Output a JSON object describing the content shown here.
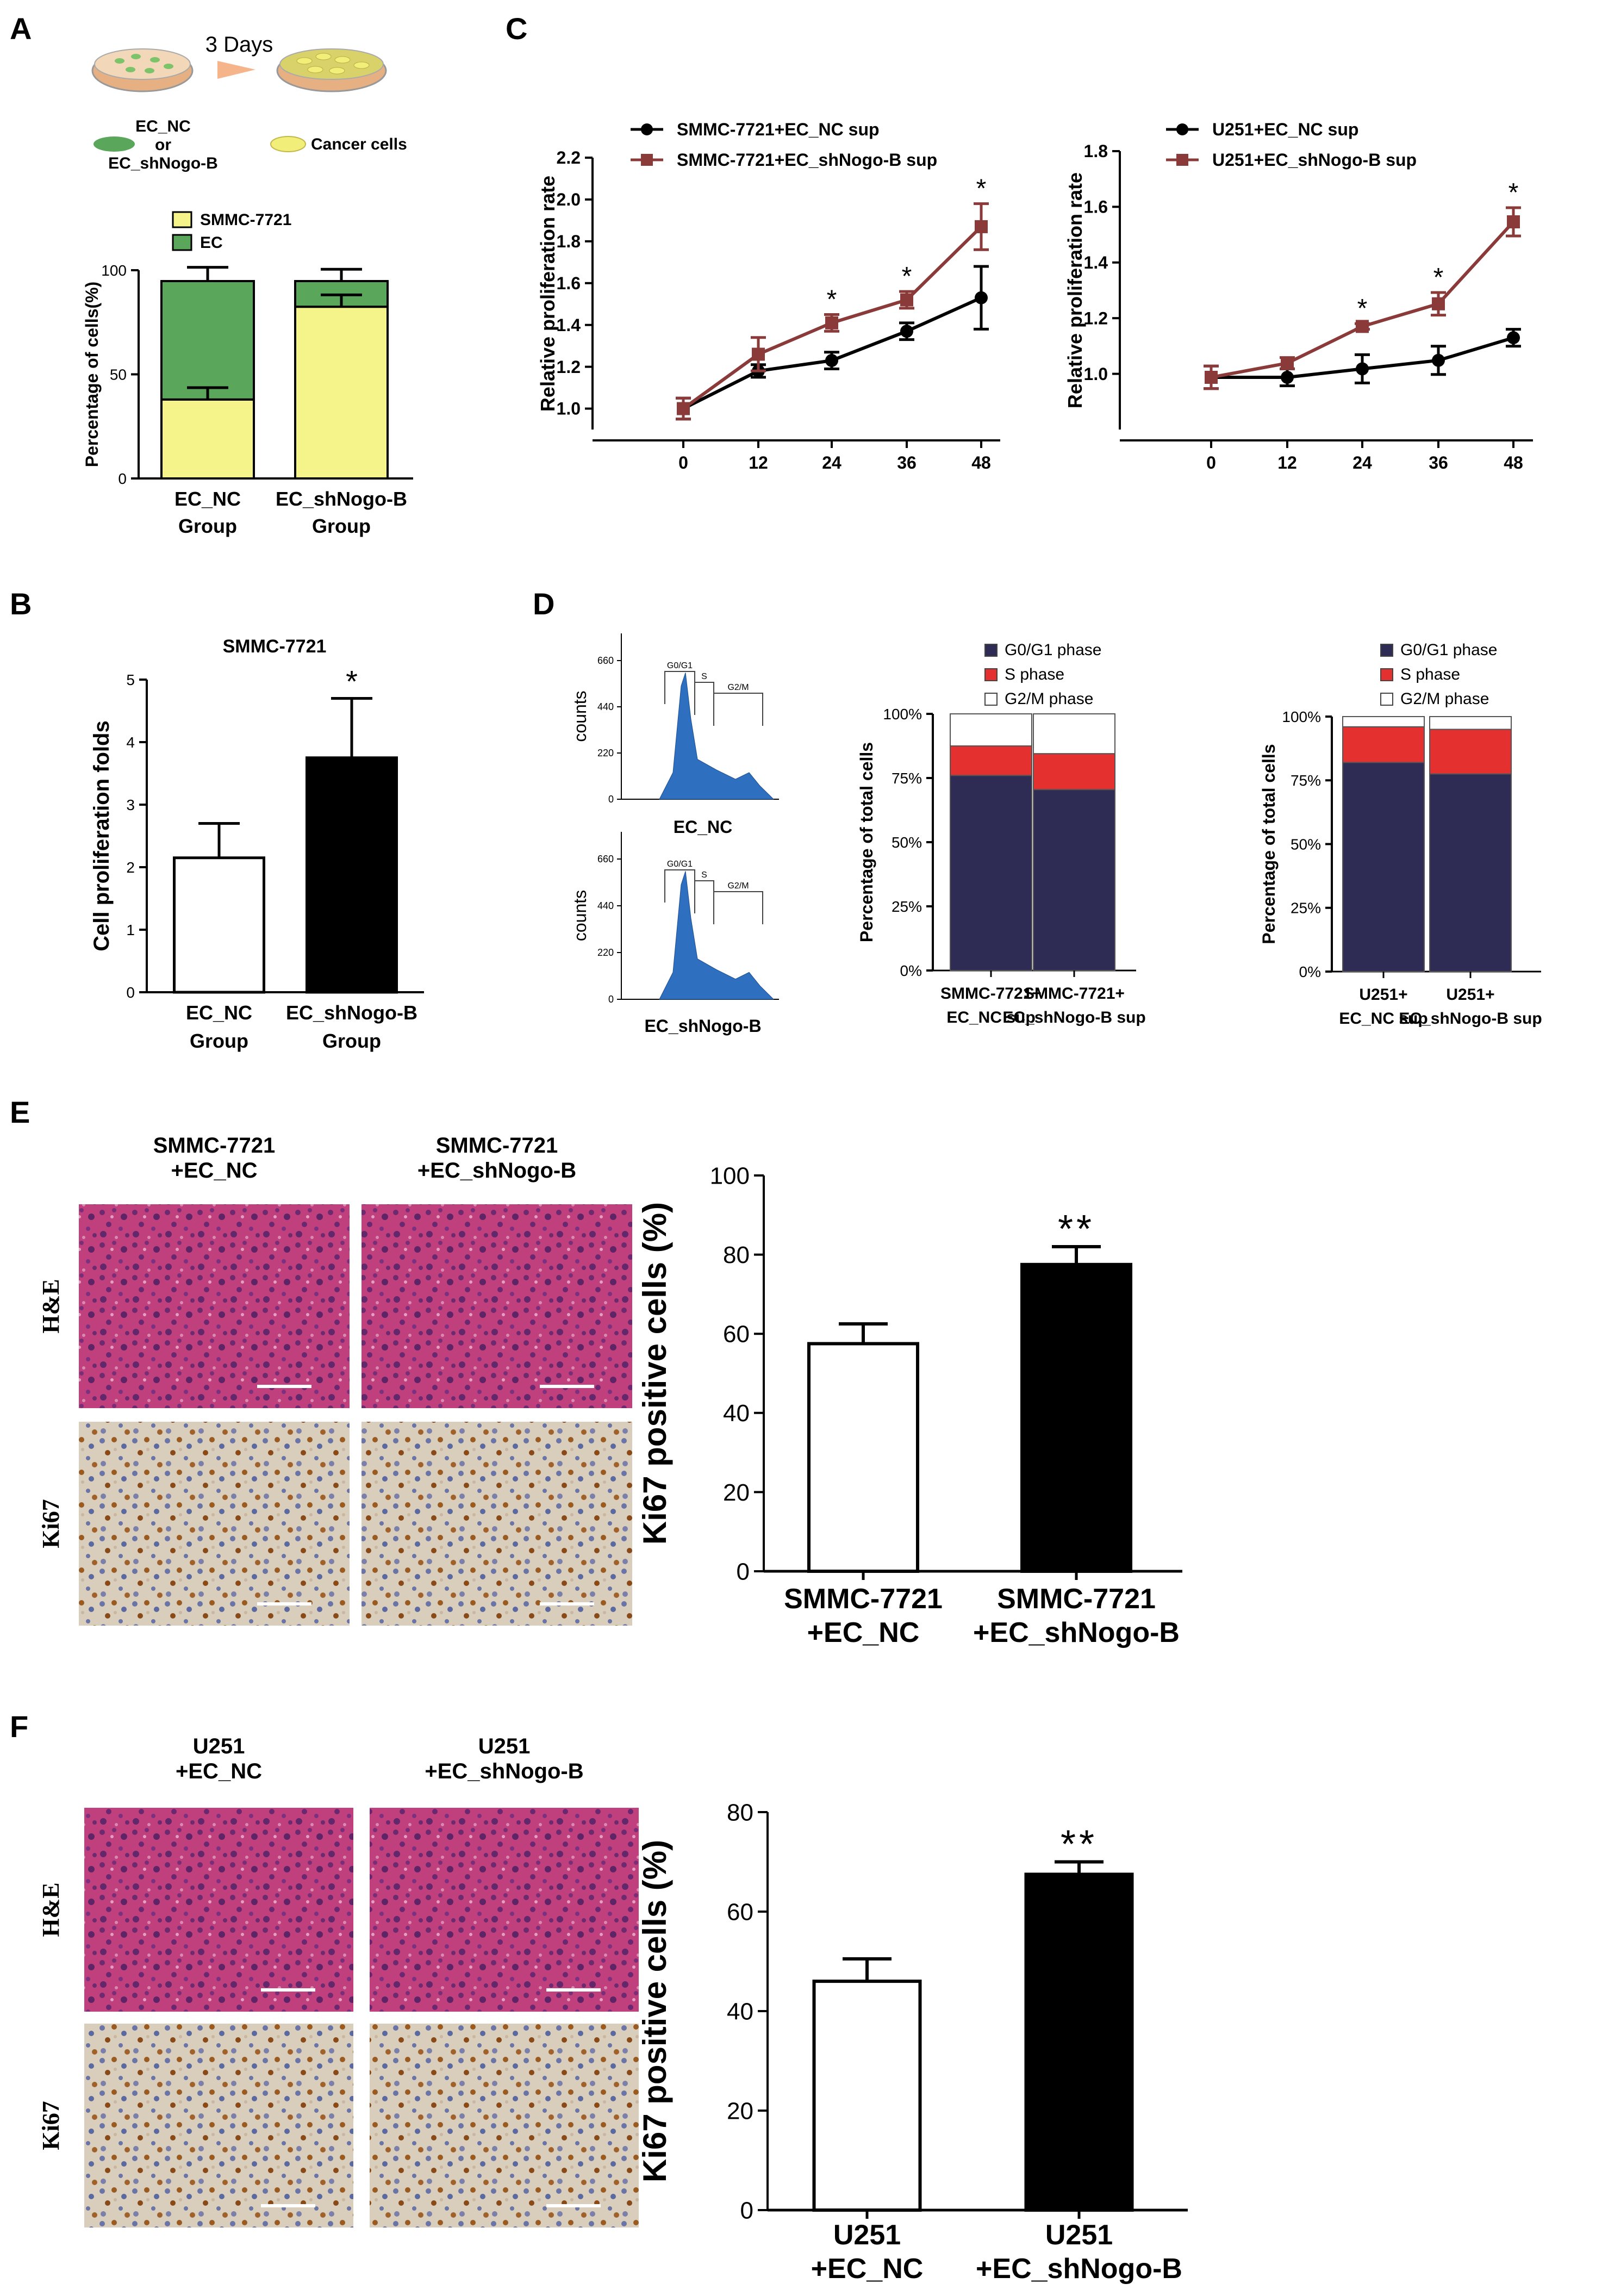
{
  "panels": {
    "A": {
      "letter": "A",
      "days_label": "3 Days",
      "legend_ec": "EC_NC\nor\nEC_shNogo-B",
      "legend_cancer": "Cancer cells",
      "chart": {
        "type": "bar",
        "stacked": true,
        "ylabel": "Percentage of cells(%)",
        "ylim": [
          0,
          100
        ],
        "yticks": [
          0,
          50,
          100
        ],
        "categories": [
          "EC_NC\nGroup",
          "EC_shNogo-B\nGroup"
        ],
        "series": [
          {
            "name": "SMMC-7721",
            "color": "#f4f48a",
            "values": [
              40,
              87
            ],
            "err": [
              6,
              6
            ]
          },
          {
            "name": "EC",
            "color": "#5aa65a",
            "values": [
              60,
              13
            ],
            "err": [
              7,
              6
            ]
          }
        ]
      }
    },
    "B": {
      "letter": "B",
      "chart": {
        "type": "bar",
        "title": "SMMC-7721",
        "ylabel": "Cell proliferation folds",
        "ylim": [
          0,
          5
        ],
        "yticks": [
          0,
          1,
          2,
          3,
          4,
          5
        ],
        "categories": [
          "EC_NC\nGroup",
          "EC_shNogo-B\nGroup"
        ],
        "values": [
          2.15,
          3.75
        ],
        "err": [
          0.55,
          0.95
        ],
        "colors": [
          "#ffffff",
          "#000000"
        ],
        "annotations": [
          "",
          "*"
        ]
      }
    },
    "C": {
      "letter": "C",
      "charts": [
        {
          "type": "line",
          "ylabel": "Relative proliferation rate",
          "ylim": [
            0.9,
            2.2
          ],
          "yticks": [
            1.0,
            1.2,
            1.4,
            1.6,
            1.8,
            2.0,
            2.2
          ],
          "x": [
            0,
            12,
            24,
            36,
            48
          ],
          "series": [
            {
              "name": "SMMC-7721+EC_NC sup",
              "color": "#000000",
              "marker": "circle",
              "values": [
                1.0,
                1.18,
                1.23,
                1.37,
                1.53
              ],
              "err": [
                0.05,
                0.03,
                0.04,
                0.04,
                0.15
              ]
            },
            {
              "name": "SMMC-7721+EC_shNogo-B sup",
              "color": "#8b3a3a",
              "marker": "square",
              "values": [
                1.0,
                1.26,
                1.41,
                1.52,
                1.87
              ],
              "err": [
                0.05,
                0.08,
                0.04,
                0.04,
                0.11
              ]
            }
          ],
          "annotations": [
            "",
            "",
            "*",
            "*",
            "*"
          ]
        },
        {
          "type": "line",
          "ylabel": "Relative proliferation rate",
          "ylim": [
            0.8,
            1.8
          ],
          "yticks": [
            1.0,
            1.2,
            1.4,
            1.6,
            1.8
          ],
          "x": [
            0,
            12,
            24,
            36,
            48
          ],
          "series": [
            {
              "name": "U251+EC_NC sup",
              "color": "#000000",
              "marker": "circle",
              "values": [
                1.0,
                1.0,
                1.03,
                1.06,
                1.14
              ],
              "err": [
                0.04,
                0.03,
                0.05,
                0.05,
                0.03
              ]
            },
            {
              "name": "U251+EC_shNogo-B sup",
              "color": "#8b3a3a",
              "marker": "square",
              "values": [
                1.0,
                1.05,
                1.18,
                1.26,
                1.55
              ],
              "err": [
                0.04,
                0.02,
                0.01,
                0.04,
                0.05
              ]
            }
          ],
          "annotations": [
            "",
            "",
            "*",
            "*",
            "*"
          ]
        }
      ]
    },
    "D": {
      "letter": "D",
      "hist_labels": [
        "EC_NC",
        "EC_shNogo-B"
      ],
      "hist_ylabel": "counts",
      "hist_yticks": [
        "0",
        "220",
        "440",
        "660"
      ],
      "hist_gates": [
        "G0/G1",
        "S",
        "G2/M"
      ],
      "charts": [
        {
          "type": "bar",
          "stacked": true,
          "ylabel": "Percentage of total cells",
          "yticks": [
            "0%",
            "25%",
            "50%",
            "75%",
            "100%"
          ],
          "categories": [
            "SMMC-7721+\nEC_NC sup",
            "SMMC-7721+\nEC_shNogo-B  sup"
          ],
          "series": [
            {
              "name": "G0/G1 phase",
              "color": "#2e2c54",
              "values": [
                76,
                70.5
              ]
            },
            {
              "name": "S phase",
              "color": "#e53030",
              "values": [
                11.5,
                14
              ]
            },
            {
              "name": "G2/M phase",
              "color": "#ffffff",
              "values": [
                12.5,
                15.5
              ]
            }
          ]
        },
        {
          "type": "bar",
          "stacked": true,
          "ylabel": "Percentage of total cells",
          "yticks": [
            "0%",
            "25%",
            "50%",
            "75%",
            "100%"
          ],
          "categories": [
            "U251+\nEC_NC sup",
            "U251+\nEC_shNogo-B sup"
          ],
          "series": [
            {
              "name": "G0/G1 phase",
              "color": "#2e2c54",
              "values": [
                82,
                77.5
              ]
            },
            {
              "name": "S phase",
              "color": "#e53030",
              "values": [
                14,
                17.5
              ]
            },
            {
              "name": "G2/M phase",
              "color": "#ffffff",
              "values": [
                4,
                5
              ]
            }
          ]
        }
      ]
    },
    "E": {
      "letter": "E",
      "col_headers": [
        "SMMC-7721\n+EC_NC",
        "SMMC-7721\n+EC_shNogo-B"
      ],
      "row_labels": [
        "H&E",
        "Ki67"
      ],
      "chart": {
        "type": "bar",
        "ylabel": "Ki67 positive cells (%)",
        "ylim": [
          0,
          100
        ],
        "yticks": [
          0,
          20,
          40,
          60,
          80,
          100
        ],
        "categories": [
          "SMMC-7721\n+EC_NC",
          "SMMC-7721\n+EC_shNogo-B"
        ],
        "values": [
          57.5,
          77.5
        ],
        "err": [
          5,
          4.5
        ],
        "colors": [
          "#ffffff",
          "#000000"
        ],
        "annotations": [
          "",
          "**"
        ]
      }
    },
    "F": {
      "letter": "F",
      "col_headers": [
        "U251\n+EC_NC",
        "U251\n+EC_shNogo-B"
      ],
      "row_labels": [
        "H&E",
        "Ki67"
      ],
      "chart": {
        "type": "bar",
        "ylabel": "Ki67 positive cells (%)",
        "ylim": [
          0,
          80
        ],
        "yticks": [
          0,
          20,
          40,
          60,
          80
        ],
        "categories": [
          "U251\n+EC_NC",
          "U251\n+EC_shNogo-B"
        ],
        "values": [
          46,
          67.5
        ],
        "err": [
          4.5,
          2.5
        ],
        "colors": [
          "#ffffff",
          "#000000"
        ],
        "annotations": [
          "",
          "**"
        ]
      }
    }
  }
}
